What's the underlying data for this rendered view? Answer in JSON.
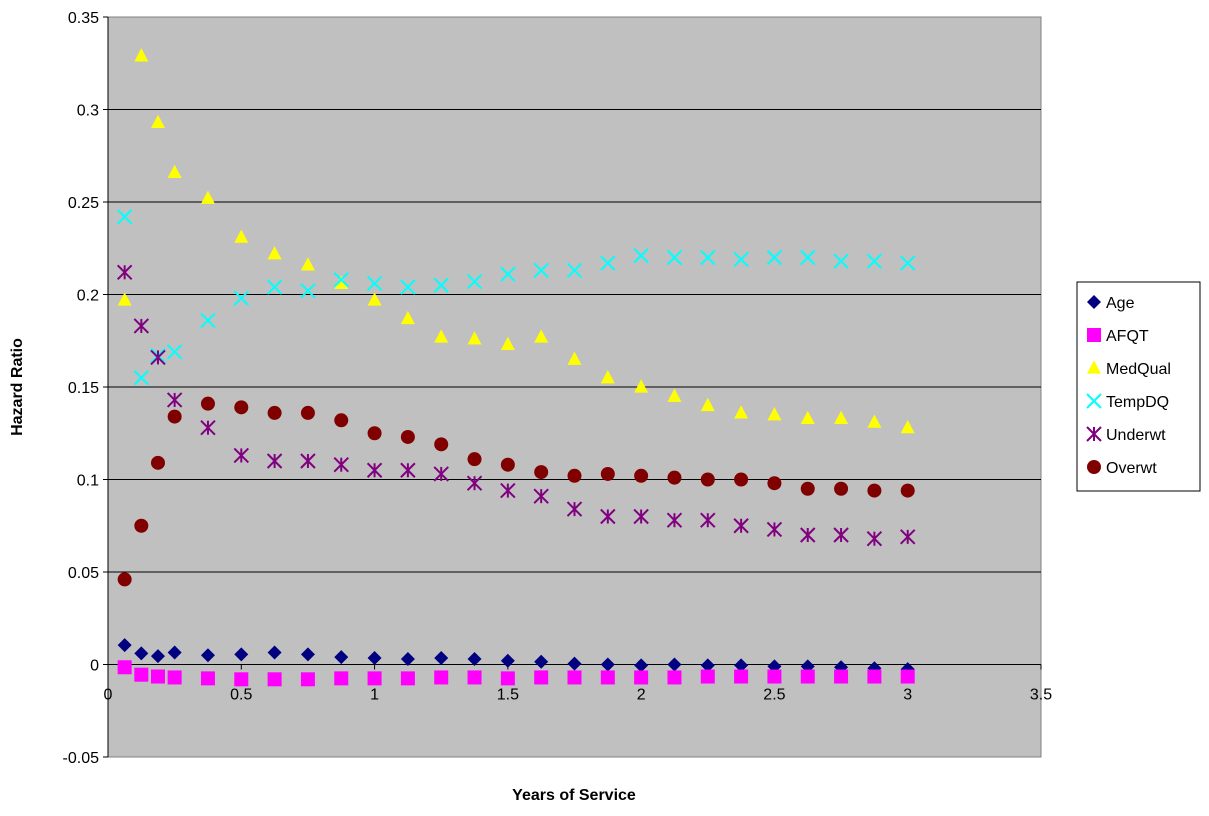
{
  "chart_data": {
    "type": "scatter",
    "title": "",
    "xlabel": "Years of Service",
    "ylabel": "Hazard Ratio",
    "xlim": [
      0,
      3.5
    ],
    "ylim": [
      -0.05,
      0.35
    ],
    "x_ticks": [
      "0",
      "0.5",
      "1",
      "1.5",
      "2",
      "2.5",
      "3",
      "3.5"
    ],
    "y_ticks": [
      "-0.05",
      "0",
      "0.05",
      "0.1",
      "0.15",
      "0.2",
      "0.25",
      "0.3",
      "0.35"
    ],
    "grid": "horizontal",
    "legend_position": "right",
    "plot_background": "#c0c0c0",
    "series": [
      {
        "name": "Age",
        "marker": "diamond",
        "color": "#000080",
        "points": [
          [
            0.0625,
            0.0105
          ],
          [
            0.125,
            0.006
          ],
          [
            0.1875,
            0.0045
          ],
          [
            0.25,
            0.0065
          ],
          [
            0.375,
            0.005
          ],
          [
            0.5,
            0.0055
          ],
          [
            0.625,
            0.0065
          ],
          [
            0.75,
            0.0055
          ],
          [
            0.875,
            0.004
          ],
          [
            1.0,
            0.0035
          ],
          [
            1.125,
            0.003
          ],
          [
            1.25,
            0.0035
          ],
          [
            1.375,
            0.003
          ],
          [
            1.5,
            0.002
          ],
          [
            1.625,
            0.0015
          ],
          [
            1.75,
            0.0005
          ],
          [
            1.875,
            0.0
          ],
          [
            2.0,
            -0.0005
          ],
          [
            2.125,
            0.0
          ],
          [
            2.25,
            -0.0005
          ],
          [
            2.375,
            -0.0005
          ],
          [
            2.5,
            -0.001
          ],
          [
            2.625,
            -0.001
          ],
          [
            2.75,
            -0.0015
          ],
          [
            2.875,
            -0.002
          ],
          [
            3.0,
            -0.0025
          ]
        ]
      },
      {
        "name": "AFQT",
        "marker": "square",
        "color": "#ff00ff",
        "points": [
          [
            0.0625,
            -0.0015
          ],
          [
            0.125,
            -0.0055
          ],
          [
            0.1875,
            -0.0065
          ],
          [
            0.25,
            -0.007
          ],
          [
            0.375,
            -0.0075
          ],
          [
            0.5,
            -0.008
          ],
          [
            0.625,
            -0.008
          ],
          [
            0.75,
            -0.008
          ],
          [
            0.875,
            -0.0075
          ],
          [
            1.0,
            -0.0075
          ],
          [
            1.125,
            -0.0075
          ],
          [
            1.25,
            -0.007
          ],
          [
            1.375,
            -0.007
          ],
          [
            1.5,
            -0.0075
          ],
          [
            1.625,
            -0.007
          ],
          [
            1.75,
            -0.007
          ],
          [
            1.875,
            -0.007
          ],
          [
            2.0,
            -0.007
          ],
          [
            2.125,
            -0.007
          ],
          [
            2.25,
            -0.0065
          ],
          [
            2.375,
            -0.0065
          ],
          [
            2.5,
            -0.0065
          ],
          [
            2.625,
            -0.0065
          ],
          [
            2.75,
            -0.0065
          ],
          [
            2.875,
            -0.0065
          ],
          [
            3.0,
            -0.0065
          ]
        ]
      },
      {
        "name": "MedQual",
        "marker": "triangle",
        "color": "#ffff00",
        "points": [
          [
            0.0625,
            0.197
          ],
          [
            0.125,
            0.329
          ],
          [
            0.1875,
            0.293
          ],
          [
            0.25,
            0.266
          ],
          [
            0.375,
            0.252
          ],
          [
            0.5,
            0.231
          ],
          [
            0.625,
            0.222
          ],
          [
            0.75,
            0.216
          ],
          [
            0.875,
            0.206
          ],
          [
            1.0,
            0.197
          ],
          [
            1.125,
            0.187
          ],
          [
            1.25,
            0.177
          ],
          [
            1.375,
            0.176
          ],
          [
            1.5,
            0.173
          ],
          [
            1.625,
            0.177
          ],
          [
            1.75,
            0.165
          ],
          [
            1.875,
            0.155
          ],
          [
            2.0,
            0.15
          ],
          [
            2.125,
            0.145
          ],
          [
            2.25,
            0.14
          ],
          [
            2.375,
            0.136
          ],
          [
            2.5,
            0.135
          ],
          [
            2.625,
            0.133
          ],
          [
            2.75,
            0.133
          ],
          [
            2.875,
            0.131
          ],
          [
            3.0,
            0.128
          ]
        ]
      },
      {
        "name": "TempDQ",
        "marker": "x",
        "color": "#00ffff",
        "points": [
          [
            0.0625,
            0.242
          ],
          [
            0.125,
            0.155
          ],
          [
            0.1875,
            0.167
          ],
          [
            0.25,
            0.169
          ],
          [
            0.375,
            0.186
          ],
          [
            0.5,
            0.198
          ],
          [
            0.625,
            0.204
          ],
          [
            0.75,
            0.202
          ],
          [
            0.875,
            0.208
          ],
          [
            1.0,
            0.206
          ],
          [
            1.125,
            0.204
          ],
          [
            1.25,
            0.205
          ],
          [
            1.375,
            0.207
          ],
          [
            1.5,
            0.211
          ],
          [
            1.625,
            0.213
          ],
          [
            1.75,
            0.213
          ],
          [
            1.875,
            0.217
          ],
          [
            2.0,
            0.221
          ],
          [
            2.125,
            0.22
          ],
          [
            2.25,
            0.22
          ],
          [
            2.375,
            0.219
          ],
          [
            2.5,
            0.22
          ],
          [
            2.625,
            0.22
          ],
          [
            2.75,
            0.218
          ],
          [
            2.875,
            0.218
          ],
          [
            3.0,
            0.217
          ]
        ]
      },
      {
        "name": "Underwt",
        "marker": "star",
        "color": "#800080",
        "points": [
          [
            0.0625,
            0.212
          ],
          [
            0.125,
            0.183
          ],
          [
            0.1875,
            0.166
          ],
          [
            0.25,
            0.143
          ],
          [
            0.375,
            0.128
          ],
          [
            0.5,
            0.113
          ],
          [
            0.625,
            0.11
          ],
          [
            0.75,
            0.11
          ],
          [
            0.875,
            0.108
          ],
          [
            1.0,
            0.105
          ],
          [
            1.125,
            0.105
          ],
          [
            1.25,
            0.103
          ],
          [
            1.375,
            0.098
          ],
          [
            1.5,
            0.094
          ],
          [
            1.625,
            0.091
          ],
          [
            1.75,
            0.084
          ],
          [
            1.875,
            0.08
          ],
          [
            2.0,
            0.08
          ],
          [
            2.125,
            0.078
          ],
          [
            2.25,
            0.078
          ],
          [
            2.375,
            0.075
          ],
          [
            2.5,
            0.073
          ],
          [
            2.625,
            0.07
          ],
          [
            2.75,
            0.07
          ],
          [
            2.875,
            0.068
          ],
          [
            3.0,
            0.069
          ]
        ]
      },
      {
        "name": "Overwt",
        "marker": "circle",
        "color": "#800000",
        "points": [
          [
            0.0625,
            0.046
          ],
          [
            0.125,
            0.075
          ],
          [
            0.1875,
            0.109
          ],
          [
            0.25,
            0.134
          ],
          [
            0.375,
            0.141
          ],
          [
            0.5,
            0.139
          ],
          [
            0.625,
            0.136
          ],
          [
            0.75,
            0.136
          ],
          [
            0.875,
            0.132
          ],
          [
            1.0,
            0.125
          ],
          [
            1.125,
            0.123
          ],
          [
            1.25,
            0.119
          ],
          [
            1.375,
            0.111
          ],
          [
            1.5,
            0.108
          ],
          [
            1.625,
            0.104
          ],
          [
            1.75,
            0.102
          ],
          [
            1.875,
            0.103
          ],
          [
            2.0,
            0.102
          ],
          [
            2.125,
            0.101
          ],
          [
            2.25,
            0.1
          ],
          [
            2.375,
            0.1
          ],
          [
            2.5,
            0.098
          ],
          [
            2.625,
            0.095
          ],
          [
            2.75,
            0.095
          ],
          [
            2.875,
            0.094
          ],
          [
            3.0,
            0.094
          ]
        ]
      }
    ]
  }
}
